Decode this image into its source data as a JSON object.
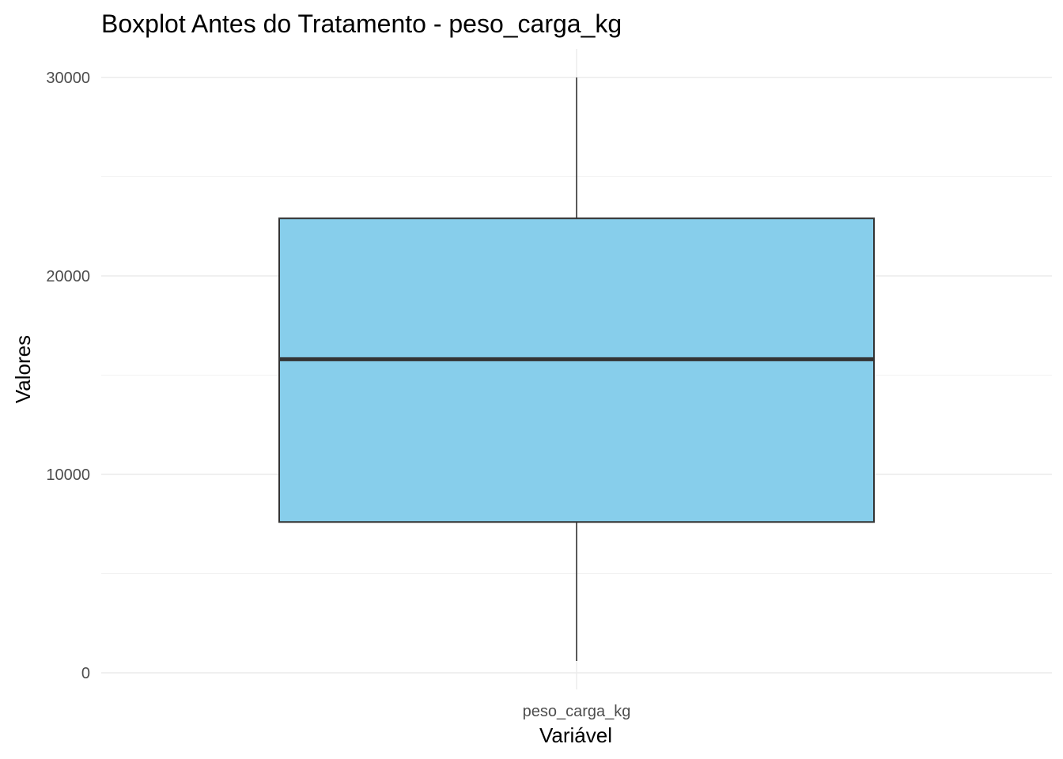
{
  "chart_data": {
    "type": "boxplot",
    "title": "Boxplot Antes do Tratamento - peso_carga_kg",
    "xlabel": "Variável",
    "ylabel": "Valores",
    "categories": [
      "peso_carga_kg"
    ],
    "boxes": [
      {
        "category": "peso_carga_kg",
        "min": 600,
        "q1": 7600,
        "median": 15800,
        "q3": 22900,
        "max": 30000
      }
    ],
    "y_ticks": [
      0,
      10000,
      20000,
      30000
    ],
    "y_tick_labels": [
      "0",
      "10000",
      "20000",
      "30000"
    ],
    "ylim": [
      -1000,
      31500
    ],
    "grid": true,
    "legend": "none",
    "box_fill": "#87ceeb",
    "box_stroke": "#333333"
  }
}
